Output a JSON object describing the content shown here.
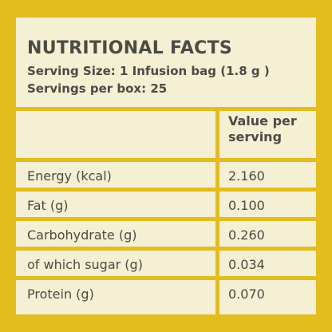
{
  "header": {
    "title": "NUTRITIONAL FACTS",
    "serving_size": "Serving Size: 1 Infusion bag (1.8 g )",
    "servings_per_box": "Servings per box: 25"
  },
  "table": {
    "column_header": "Value per serving",
    "rows": [
      [
        "Energy (kcal)",
        "2.160"
      ],
      [
        "Fat (g)",
        "0.100"
      ],
      [
        "Carbohydrate (g)",
        "0.260"
      ],
      [
        "of which sugar (g)",
        "0.034"
      ],
      [
        "Protein (g)",
        "0.070"
      ]
    ]
  }
}
